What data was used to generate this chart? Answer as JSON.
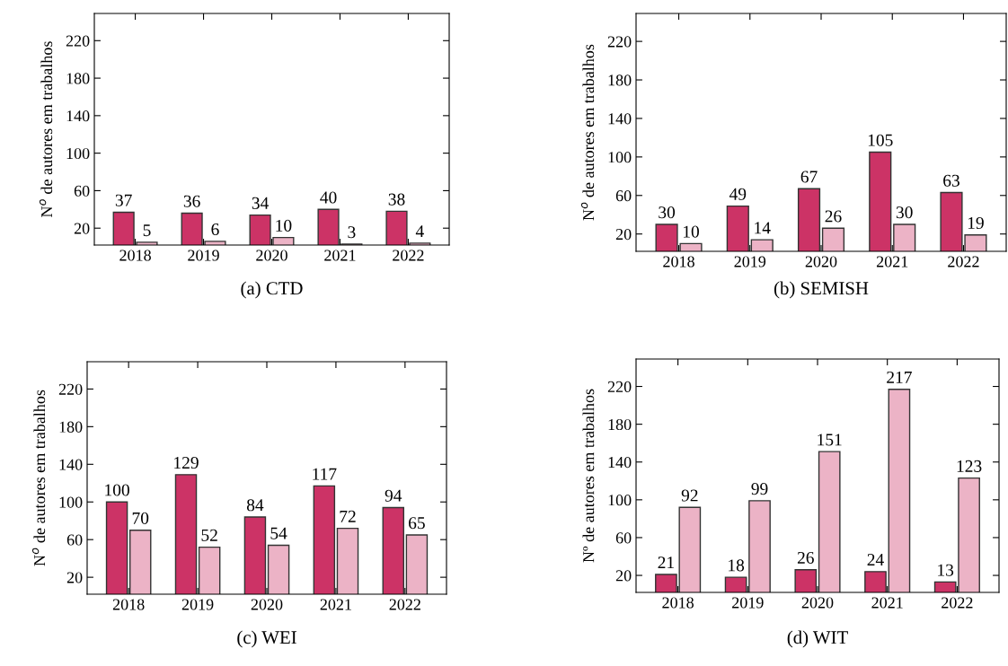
{
  "chart_data": [
    {
      "type": "bar",
      "categories": [
        "2018",
        "2019",
        "2020",
        "2021",
        "2022"
      ],
      "ylabel": "N$^{o}$ de autores em trabalhos",
      "ylim": [
        2,
        249
      ],
      "yticks": [
        20,
        60,
        100,
        140,
        180,
        220
      ],
      "data_labels": true,
      "grid": false,
      "annotations": [
        "(a) CTD"
      ],
      "series": [
        {
          "color": "#cc3366",
          "values": [
            37,
            36,
            34,
            40,
            38
          ]
        },
        {
          "color": "#ecb3c6",
          "values": [
            5,
            6,
            10,
            3,
            4
          ]
        }
      ]
    },
    {
      "type": "bar",
      "categories": [
        "2018",
        "2019",
        "2020",
        "2021",
        "2022"
      ],
      "ylabel": "N$^{o}$ de autores em trabalhos",
      "ylim": [
        2,
        249
      ],
      "yticks": [
        20,
        60,
        100,
        140,
        180,
        220
      ],
      "data_labels": true,
      "grid": false,
      "annotations": [
        "(b) SEMISH"
      ],
      "series": [
        {
          "color": "#cc3366",
          "values": [
            30,
            49,
            67,
            105,
            63
          ]
        },
        {
          "color": "#ecb3c6",
          "values": [
            10,
            14,
            26,
            30,
            19
          ]
        }
      ]
    },
    {
      "type": "bar",
      "categories": [
        "2018",
        "2019",
        "2020",
        "2021",
        "2022"
      ],
      "ylabel": "N$^{o}$ de autores em trabalhos",
      "ylim": [
        2,
        249
      ],
      "yticks": [
        20,
        60,
        100,
        140,
        180,
        220
      ],
      "data_labels": true,
      "grid": false,
      "annotations": [
        "(c) WEI"
      ],
      "series": [
        {
          "color": "#cc3366",
          "values": [
            100,
            129,
            84,
            117,
            94
          ]
        },
        {
          "color": "#ecb3c6",
          "values": [
            70,
            52,
            54,
            72,
            65
          ]
        }
      ]
    },
    {
      "type": "bar",
      "categories": [
        "2018",
        "2019",
        "2020",
        "2021",
        "2022"
      ],
      "ylabel": "Nº de autores em trabalhos",
      "ylim": [
        2,
        249
      ],
      "yticks": [
        20,
        60,
        100,
        140,
        180,
        220
      ],
      "data_labels": true,
      "grid": false,
      "annotations": [
        "(d) WIT"
      ],
      "series": [
        {
          "color": "#cc3366",
          "values": [
            21,
            18,
            26,
            24,
            13
          ]
        },
        {
          "color": "#ecb3c6",
          "values": [
            92,
            99,
            151,
            217,
            123
          ]
        }
      ]
    }
  ]
}
